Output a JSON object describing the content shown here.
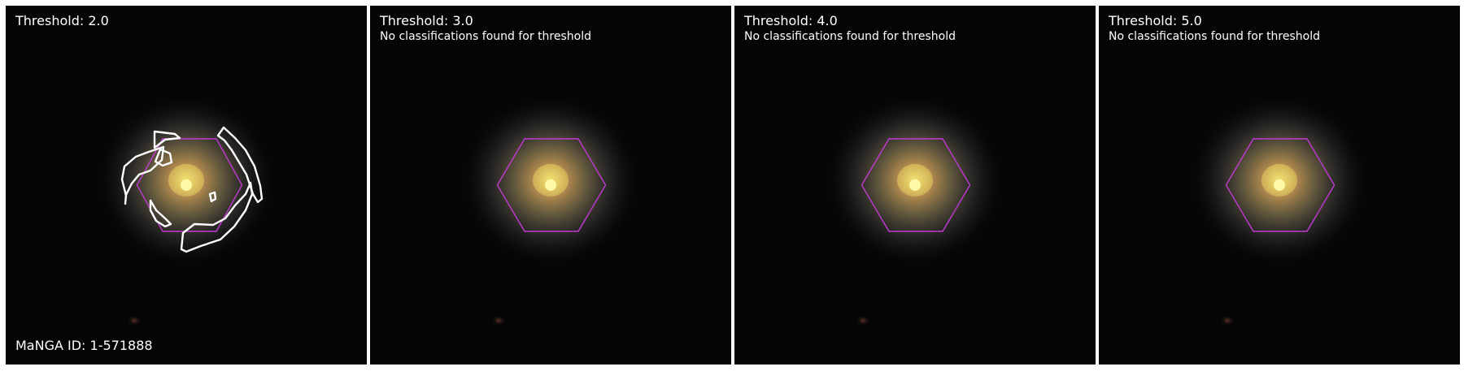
{
  "panels": [
    {
      "title": "Threshold: 2.0",
      "note": "",
      "id_label": "MaNGA ID: 1-571888",
      "has_contours": true
    },
    {
      "title": "Threshold: 3.0",
      "note": "No classifications found for threshold"
    },
    {
      "title": "Threshold: 4.0",
      "note": "No classifications found for threshold"
    },
    {
      "title": "Threshold: 5.0",
      "note": "No classifications found for threshold"
    }
  ],
  "colors": {
    "background": "#050505",
    "hexagon": "#c03ad0",
    "contour": "#ffffff",
    "galaxy_core": "#f4f08a",
    "galaxy_disk": "#7a6a48",
    "text": "#ffffff"
  }
}
